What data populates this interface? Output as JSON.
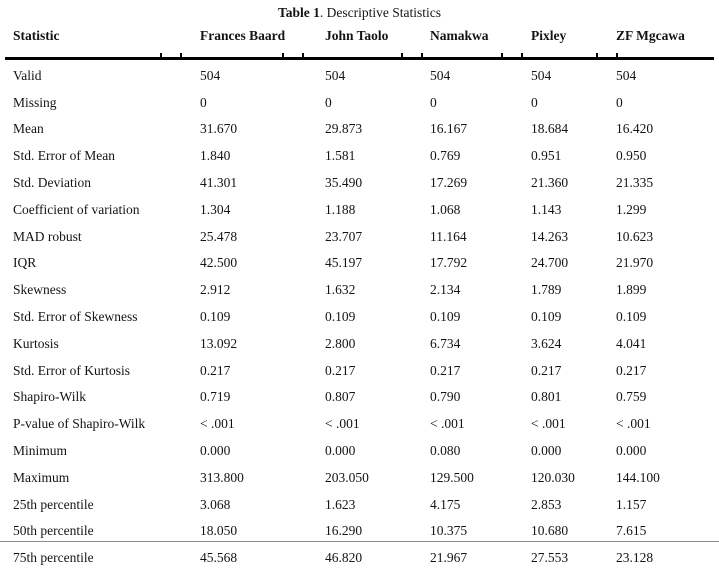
{
  "table": {
    "title_bold": "Table 1",
    "title_rest": ". Descriptive Statistics",
    "columns": [
      "Statistic",
      "Frances Baard",
      "John Taolo",
      "Namakwa",
      "Pixley",
      "ZF Mgcawa"
    ],
    "rows": [
      {
        "label": "Valid",
        "values": [
          "504",
          "504",
          "504",
          "504",
          "504"
        ]
      },
      {
        "label": "Missing",
        "values": [
          "0",
          "0",
          "0",
          "0",
          "0"
        ]
      },
      {
        "label": "Mean",
        "values": [
          "31.670",
          "29.873",
          "16.167",
          "18.684",
          "16.420"
        ]
      },
      {
        "label": "Std. Error of Mean",
        "values": [
          "1.840",
          "1.581",
          "0.769",
          "0.951",
          "0.950"
        ]
      },
      {
        "label": "Std. Deviation",
        "values": [
          "41.301",
          "35.490",
          "17.269",
          "21.360",
          "21.335"
        ]
      },
      {
        "label": "Coefficient of variation",
        "values": [
          "1.304",
          "1.188",
          "1.068",
          "1.143",
          "1.299"
        ]
      },
      {
        "label": "MAD robust",
        "values": [
          "25.478",
          "23.707",
          "11.164",
          "14.263",
          "10.623"
        ]
      },
      {
        "label": "IQR",
        "values": [
          "42.500",
          "45.197",
          "17.792",
          "24.700",
          "21.970"
        ]
      },
      {
        "label": "Skewness",
        "values": [
          "2.912",
          "1.632",
          "2.134",
          "1.789",
          "1.899"
        ]
      },
      {
        "label": "Std. Error of Skewness",
        "values": [
          "0.109",
          "0.109",
          "0.109",
          "0.109",
          "0.109"
        ]
      },
      {
        "label": "Kurtosis",
        "values": [
          "13.092",
          "2.800",
          "6.734",
          "3.624",
          "4.041"
        ]
      },
      {
        "label": "Std. Error of Kurtosis",
        "values": [
          "0.217",
          "0.217",
          "0.217",
          "0.217",
          "0.217"
        ]
      },
      {
        "label": "Shapiro-Wilk",
        "values": [
          "0.719",
          "0.807",
          "0.790",
          "0.801",
          "0.759"
        ]
      },
      {
        "label": "P-value of Shapiro-Wilk",
        "values": [
          "< .001",
          "< .001",
          "< .001",
          "< .001",
          "< .001"
        ]
      },
      {
        "label": "Minimum",
        "values": [
          "0.000",
          "0.000",
          "0.080",
          "0.000",
          "0.000"
        ]
      },
      {
        "label": "Maximum",
        "values": [
          "313.800",
          "203.050",
          "129.500",
          "120.030",
          "144.100"
        ]
      },
      {
        "label": "25th percentile",
        "values": [
          "3.068",
          "1.623",
          "4.175",
          "2.853",
          "1.157"
        ]
      },
      {
        "label": "50th percentile",
        "values": [
          "18.050",
          "16.290",
          "10.375",
          "10.680",
          "7.615"
        ]
      },
      {
        "label": "75th percentile",
        "values": [
          "45.568",
          "46.820",
          "21.967",
          "27.553",
          "23.128"
        ]
      }
    ],
    "colors": {
      "text": "#141414",
      "rule": "#000000",
      "separator": "#8f8f8f",
      "background": "#ffffff"
    }
  }
}
